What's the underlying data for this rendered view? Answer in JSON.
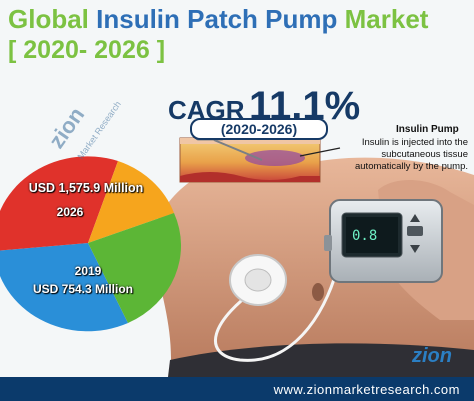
{
  "title": {
    "line1_a": "Global",
    "line1_b": "Insulin Patch Pump",
    "line1_c": "Market",
    "line2": "[ 2020- 2026 ]"
  },
  "cagr": {
    "label": "CAGR",
    "value": "11.1%",
    "period": "(2020-2026)"
  },
  "insulin": {
    "title": "Insulin Pump",
    "description": "Insulin is injected into the subcutaneous tissue automatically by the pump."
  },
  "pie": {
    "label_2026_value": "USD 1,575.9 Million",
    "label_2026_year": "2026",
    "label_2019_year": "2019",
    "label_2019_value": "USD 754.3 Million",
    "colors": [
      "#2a8fd8",
      "#e0322b",
      "#f6a51d",
      "#5cb636"
    ]
  },
  "pump": {
    "display_value": "0.8"
  },
  "watermark": {
    "brand": "zion",
    "sub": "Market Research"
  },
  "footer": {
    "url": "www.zionmarketresearch.com"
  }
}
